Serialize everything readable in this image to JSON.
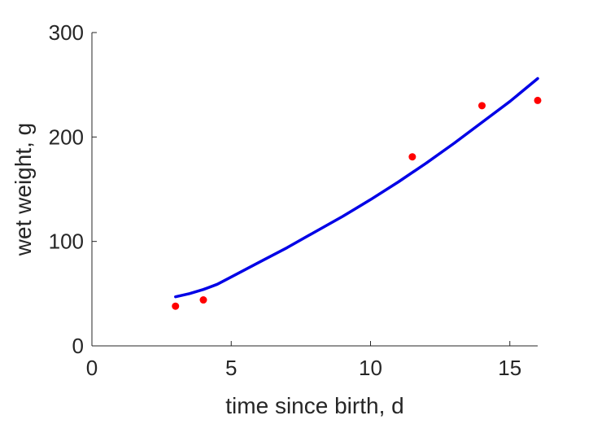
{
  "chart_data": {
    "type": "scatter",
    "title": "",
    "xlabel": "time since birth, d",
    "ylabel": "wet weight, g",
    "xlim": [
      0,
      16
    ],
    "ylim": [
      0,
      300
    ],
    "xticks": [
      0,
      5,
      10,
      15
    ],
    "yticks": [
      0,
      100,
      200,
      300
    ],
    "grid": false,
    "legend": "none",
    "series": [
      {
        "kind": "points",
        "color": "#ff0000",
        "x": [
          3.0,
          4.0,
          11.5,
          14.0,
          16.0
        ],
        "y": [
          38,
          44,
          181,
          230,
          235
        ]
      },
      {
        "kind": "line",
        "color": "#0000e6",
        "x": [
          3.0,
          3.5,
          4.0,
          4.5,
          5.0,
          6.0,
          7.0,
          8.0,
          9.0,
          10.0,
          11.0,
          12.0,
          13.0,
          14.0,
          15.0,
          16.0
        ],
        "y": [
          47,
          50,
          54,
          59,
          66,
          80,
          94,
          109,
          124,
          140,
          157,
          175,
          194,
          214,
          234,
          256
        ]
      }
    ]
  }
}
